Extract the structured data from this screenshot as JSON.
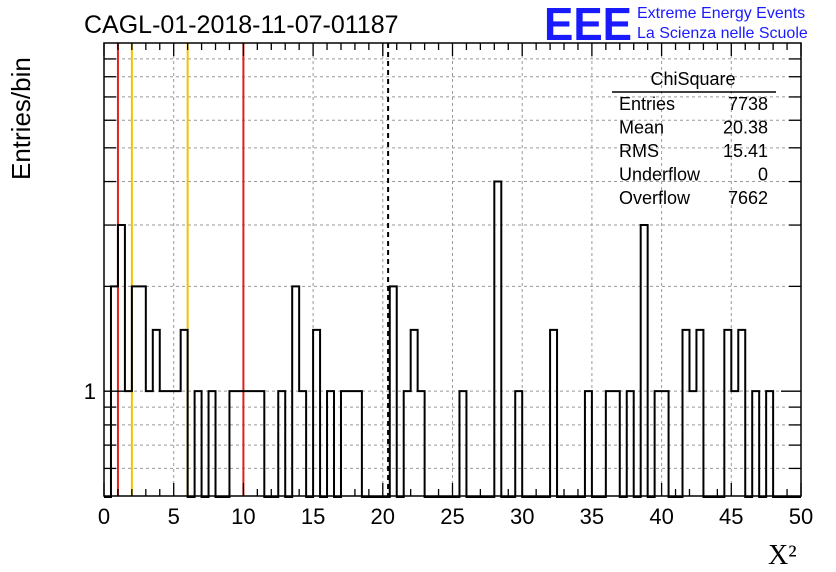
{
  "chart_data": {
    "type": "bar",
    "title": "CAGL-01-2018-11-07-01187",
    "xlabel": "X²",
    "ylabel": "Entries/bin",
    "xlim": [
      0,
      50
    ],
    "ylog": true,
    "ylim": [
      0.5,
      10
    ],
    "grid": true,
    "xticks": [
      "0",
      "5",
      "10",
      "15",
      "20",
      "25",
      "30",
      "35",
      "40",
      "45",
      "50"
    ],
    "yticks": [
      "1"
    ],
    "bin_width": 0.5,
    "bins": [
      {
        "x": 0.5,
        "y": 2
      },
      {
        "x": 1.0,
        "y": 3
      },
      {
        "x": 1.5,
        "y": 1
      },
      {
        "x": 2.0,
        "y": 2
      },
      {
        "x": 2.5,
        "y": 2
      },
      {
        "x": 3.0,
        "y": 1
      },
      {
        "x": 3.5,
        "y": 1.5
      },
      {
        "x": 4.0,
        "y": 1
      },
      {
        "x": 4.5,
        "y": 1
      },
      {
        "x": 5.0,
        "y": 1
      },
      {
        "x": 5.5,
        "y": 1.5
      },
      {
        "x": 6.5,
        "y": 1
      },
      {
        "x": 7.5,
        "y": 1
      },
      {
        "x": 9.0,
        "y": 1
      },
      {
        "x": 9.5,
        "y": 1
      },
      {
        "x": 10.0,
        "y": 1
      },
      {
        "x": 10.5,
        "y": 1
      },
      {
        "x": 11.0,
        "y": 1
      },
      {
        "x": 12.5,
        "y": 1
      },
      {
        "x": 13.5,
        "y": 2
      },
      {
        "x": 14.0,
        "y": 1
      },
      {
        "x": 15.0,
        "y": 1.5
      },
      {
        "x": 16.0,
        "y": 1
      },
      {
        "x": 17.0,
        "y": 1
      },
      {
        "x": 17.5,
        "y": 1
      },
      {
        "x": 18.0,
        "y": 1
      },
      {
        "x": 20.5,
        "y": 2
      },
      {
        "x": 21.5,
        "y": 1
      },
      {
        "x": 22.0,
        "y": 1.5
      },
      {
        "x": 22.5,
        "y": 1
      },
      {
        "x": 25.5,
        "y": 1
      },
      {
        "x": 28.0,
        "y": 4
      },
      {
        "x": 29.5,
        "y": 1
      },
      {
        "x": 32.0,
        "y": 1.5
      },
      {
        "x": 34.5,
        "y": 1
      },
      {
        "x": 36.0,
        "y": 1
      },
      {
        "x": 36.5,
        "y": 1
      },
      {
        "x": 37.5,
        "y": 1
      },
      {
        "x": 38.5,
        "y": 3
      },
      {
        "x": 39.5,
        "y": 1
      },
      {
        "x": 40.0,
        "y": 1
      },
      {
        "x": 41.5,
        "y": 1.5
      },
      {
        "x": 42.0,
        "y": 1
      },
      {
        "x": 42.5,
        "y": 1.5
      },
      {
        "x": 44.5,
        "y": 1.5
      },
      {
        "x": 45.0,
        "y": 1
      },
      {
        "x": 45.5,
        "y": 1.5
      },
      {
        "x": 46.5,
        "y": 1
      },
      {
        "x": 47.5,
        "y": 1
      }
    ],
    "markers": [
      {
        "x": 1,
        "color": "#e0201a",
        "style": "solid"
      },
      {
        "x": 2,
        "color": "#f2c200",
        "style": "solid"
      },
      {
        "x": 6,
        "color": "#f2c200",
        "style": "solid"
      },
      {
        "x": 10,
        "color": "#e0201a",
        "style": "solid"
      },
      {
        "x": 20.38,
        "color": "#000000",
        "style": "dashed"
      }
    ],
    "stats": {
      "title": "ChiSquare",
      "rows": [
        {
          "label": "Entries",
          "value": "7738"
        },
        {
          "label": "Mean",
          "value": "20.38"
        },
        {
          "label": "RMS",
          "value": "15.41"
        },
        {
          "label": "Underflow",
          "value": "0"
        },
        {
          "label": "Overflow",
          "value": "7662"
        }
      ]
    }
  },
  "logo": {
    "big": "EEE",
    "line1": "Extreme Energy Events",
    "line2": "La Scienza nelle Scuole"
  },
  "colors": {
    "logo": "#1a1aff",
    "red_marker": "#e0201a",
    "yellow_marker": "#f2c200",
    "grid": "#9a9a9a"
  }
}
